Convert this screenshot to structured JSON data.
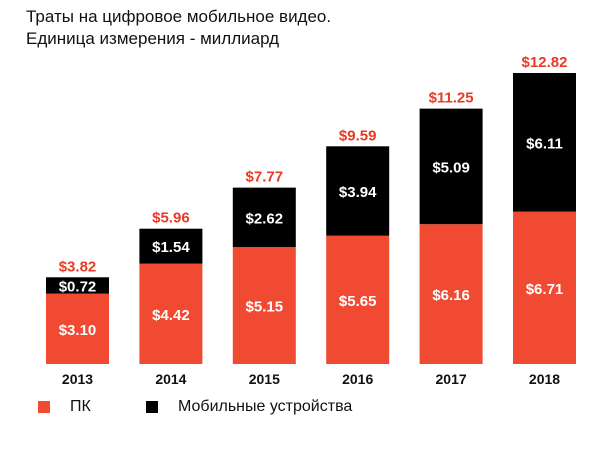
{
  "title_line1": "Траты на цифровое мобильное видео.",
  "title_line2": "Единица измерения - миллиард",
  "colors": {
    "pc": "#f04a32",
    "mobile": "#000000",
    "total_label": "#e83a27"
  },
  "chart_data": {
    "type": "bar",
    "stacked": true,
    "categories": [
      "2013",
      "2014",
      "2015",
      "2016",
      "2017",
      "2018"
    ],
    "series": [
      {
        "name": "ПК",
        "values": [
          3.1,
          4.42,
          5.15,
          5.65,
          6.16,
          6.71
        ],
        "labels": [
          "$3.10",
          "$4.42",
          "$5.15",
          "$5.65",
          "$6.16",
          "$6.71"
        ]
      },
      {
        "name": "Мобильные устройства",
        "values": [
          0.72,
          1.54,
          2.62,
          3.94,
          5.09,
          6.11
        ],
        "labels": [
          "$0.72",
          "$1.54",
          "$2.62",
          "$3.94",
          "$5.09",
          "$6.11"
        ]
      }
    ],
    "totals": [
      3.82,
      5.96,
      7.77,
      9.59,
      11.25,
      12.82
    ],
    "total_labels": [
      "$3.82",
      "$5.96",
      "$7.77",
      "$9.59",
      "$11.25",
      "$12.82"
    ],
    "legend": [
      "ПК",
      "Мобильные устройства"
    ],
    "legend_position": "bottom",
    "grid": false
  }
}
